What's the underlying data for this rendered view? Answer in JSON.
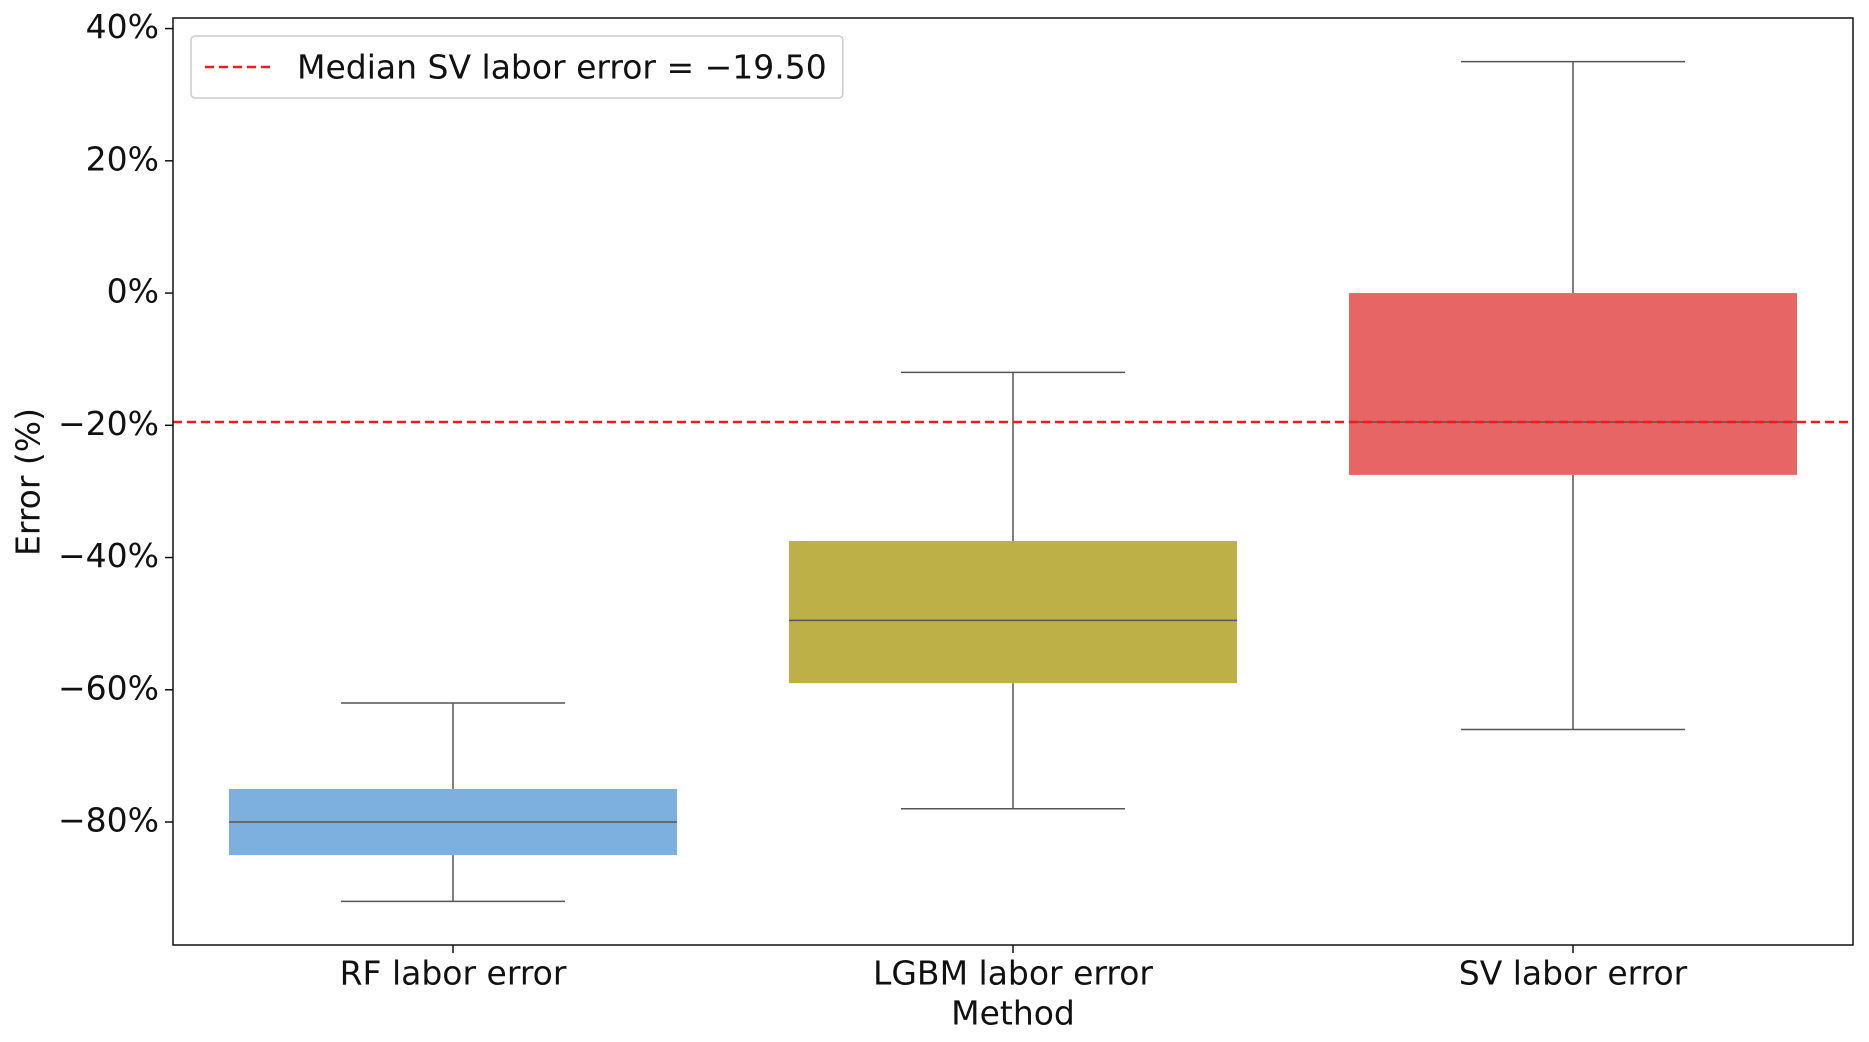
{
  "chart_data": {
    "type": "box",
    "xlabel": "Method",
    "ylabel": "Error (%)",
    "categories": [
      "RF labor error",
      "LGBM labor error",
      "SV labor error"
    ],
    "colors": [
      "#7eb0df",
      "#bdb046",
      "#e86565"
    ],
    "boxes": [
      {
        "whislo": -92,
        "q1": -85,
        "med": -80,
        "q3": -75,
        "whishi": -62
      },
      {
        "whislo": -78,
        "q1": -59,
        "med": -49.5,
        "q3": -37.5,
        "whishi": -12
      },
      {
        "whislo": -66,
        "q1": -27.5,
        "med": -19.5,
        "q3": 0,
        "whishi": 35
      }
    ],
    "hline": {
      "value": -19.5,
      "label": "Median SV labor error = −19.50",
      "color": "#ee1c1c"
    },
    "legend": "upper left",
    "ylim": [
      -98.6,
      41.6
    ],
    "yticks": [
      {
        "value": -80,
        "label": "−80%"
      },
      {
        "value": -60,
        "label": "−60%"
      },
      {
        "value": -40,
        "label": "−40%"
      },
      {
        "value": -20,
        "label": "−20%"
      },
      {
        "value": 0,
        "label": "0%"
      },
      {
        "value": 20,
        "label": "20%"
      },
      {
        "value": 40,
        "label": "40%"
      }
    ]
  }
}
